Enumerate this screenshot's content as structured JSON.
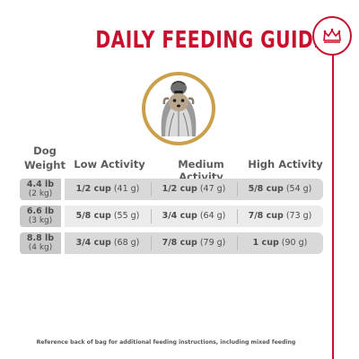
{
  "title": "DAILY FEEDING GUIDE",
  "brand_color": "#c8102e",
  "portrait_icon": "dog-portrait",
  "table": {
    "dog_weight_header": [
      "Dog",
      "Weight"
    ],
    "columns": [
      "Low Activity",
      "Medium Activity",
      "High Activity"
    ],
    "rows": [
      {
        "weight_lb": "4.4 lb",
        "weight_kg": "(2 kg)",
        "low": {
          "amount": "1/2 cup",
          "grams": "(41 g)"
        },
        "medium": {
          "amount": "1/2 cup",
          "grams": "(47 g)"
        },
        "high": {
          "amount": "5/8 cup",
          "grams": "(54 g)"
        }
      },
      {
        "weight_lb": "6.6 lb",
        "weight_kg": "(3 kg)",
        "low": {
          "amount": "5/8 cup",
          "grams": "(55 g)"
        },
        "medium": {
          "amount": "3/4 cup",
          "grams": "(64 g)"
        },
        "high": {
          "amount": "7/8 cup",
          "grams": "(73 g)"
        }
      },
      {
        "weight_lb": "8.8 lb",
        "weight_kg": "(4 kg)",
        "low": {
          "amount": "3/4 cup",
          "grams": "(68 g)"
        },
        "medium": {
          "amount": "7/8 cup",
          "grams": "(79 g)"
        },
        "high": {
          "amount": "1 cup",
          "grams": "(90 g)"
        }
      }
    ]
  },
  "footnote": "Reference back of bag for additional feeding instructions, including mixed feeding"
}
